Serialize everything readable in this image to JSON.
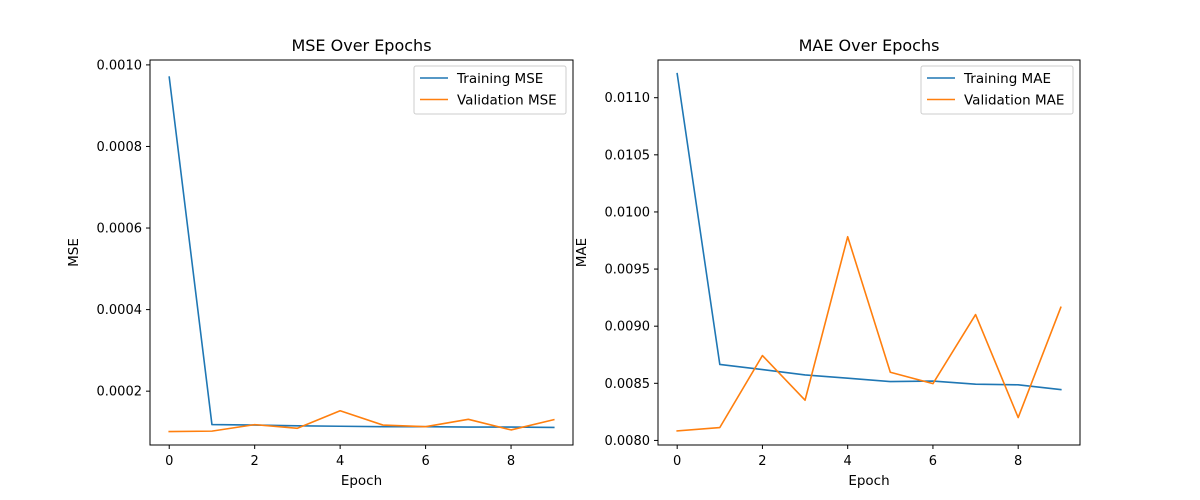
{
  "chart_data": [
    {
      "type": "line",
      "title": "MSE Over Epochs",
      "xlabel": "Epoch",
      "ylabel": "MSE",
      "xlim": [
        -0.45,
        9.45
      ],
      "ylim": [
        6.8e-05,
        0.001012
      ],
      "xticks": [
        0,
        2,
        4,
        6,
        8
      ],
      "xtick_labels": [
        "0",
        "2",
        "4",
        "6",
        "8"
      ],
      "yticks": [
        0.0002,
        0.0004,
        0.0006,
        0.0008,
        0.001
      ],
      "ytick_labels": [
        "0.0002",
        "0.0004",
        "0.0006",
        "0.0008",
        "0.0010"
      ],
      "legend_position": "top-right",
      "grid": false,
      "x": [
        0,
        1,
        2,
        3,
        4,
        5,
        6,
        7,
        8,
        9
      ],
      "series": [
        {
          "name": "Training MSE",
          "color": "#1f77b4",
          "values": [
            0.00097,
            0.000118,
            0.000117,
            0.000115,
            0.000114,
            0.000113,
            0.000113,
            0.000112,
            0.000112,
            0.000111
          ]
        },
        {
          "name": "Validation MSE",
          "color": "#ff7f0e",
          "values": [
            0.000101,
            0.000102,
            0.000118,
            0.000109,
            0.000152,
            0.000117,
            0.000113,
            0.000131,
            0.000105,
            0.00013
          ]
        }
      ]
    },
    {
      "type": "line",
      "title": "MAE Over Epochs",
      "xlabel": "Epoch",
      "ylabel": "MAE",
      "xlim": [
        -0.45,
        9.45
      ],
      "ylim": [
        0.00796,
        0.01133
      ],
      "xticks": [
        0,
        2,
        4,
        6,
        8
      ],
      "xtick_labels": [
        "0",
        "2",
        "4",
        "6",
        "8"
      ],
      "yticks": [
        0.008,
        0.0085,
        0.009,
        0.0095,
        0.01,
        0.0105,
        0.011
      ],
      "ytick_labels": [
        "0.0080",
        "0.0085",
        "0.0090",
        "0.0095",
        "0.0100",
        "0.0105",
        "0.0110"
      ],
      "legend_position": "top-right",
      "grid": false,
      "x": [
        0,
        1,
        2,
        3,
        4,
        5,
        6,
        7,
        8,
        9
      ],
      "series": [
        {
          "name": "Training MAE",
          "color": "#1f77b4",
          "values": [
            0.01121,
            0.008665,
            0.00862,
            0.008573,
            0.008545,
            0.008515,
            0.00852,
            0.008492,
            0.008487,
            0.008445
          ]
        },
        {
          "name": "Validation MAE",
          "color": "#ff7f0e",
          "values": [
            0.008083,
            0.008113,
            0.008743,
            0.008352,
            0.009783,
            0.008597,
            0.008497,
            0.009102,
            0.0082,
            0.009165
          ]
        }
      ]
    }
  ]
}
